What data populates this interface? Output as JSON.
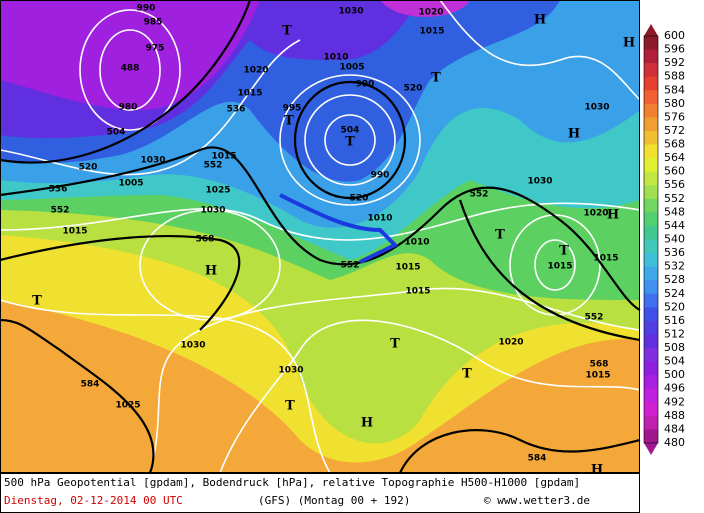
{
  "map_labels": [
    "990",
    "985",
    "975",
    "488",
    "980",
    "504",
    "520",
    "536",
    "552",
    "1015",
    "1005",
    "1030",
    "552",
    "1015",
    "1025",
    "1030",
    "568",
    "H",
    "536",
    "1015",
    "1020",
    "T",
    "T",
    "995",
    "1010",
    "1005",
    "990",
    "504",
    "T",
    "520",
    "990",
    "1010",
    "552",
    "1030",
    "1020",
    "1015",
    "520",
    "T",
    "H",
    "H",
    "1030",
    "H",
    "1030",
    "552",
    "1020",
    "H",
    "T",
    "1015",
    "1015",
    "1010",
    "1015",
    "1015",
    "552",
    "T",
    "1030",
    "1030",
    "584",
    "1025",
    "T",
    "T",
    "H",
    "T",
    "568",
    "1015",
    "584",
    "H",
    "1020",
    "T"
  ],
  "color_scale": {
    "labels": [
      600,
      596,
      592,
      588,
      584,
      580,
      576,
      572,
      568,
      564,
      560,
      556,
      552,
      548,
      544,
      540,
      536,
      532,
      528,
      524,
      520,
      516,
      512,
      508,
      504,
      500,
      496,
      492,
      488,
      484,
      480
    ],
    "colors": [
      "#8b1a2b",
      "#b0203a",
      "#d0303a",
      "#e84030",
      "#f06030",
      "#f08030",
      "#f0a030",
      "#f0c030",
      "#f0e030",
      "#e0f030",
      "#c0e840",
      "#a0e050",
      "#70d860",
      "#50d070",
      "#40c890",
      "#40c8b8",
      "#40c0d8",
      "#40a8e8",
      "#4090f0",
      "#4070f0",
      "#4050e8",
      "#5040e0",
      "#6030e0",
      "#8030e0",
      "#9020e0",
      "#a820e0",
      "#c020e0",
      "#d020d0",
      "#c020b0",
      "#a01890"
    ]
  },
  "footer": {
    "description": "500 hPa Geopotential [gpdam], Bodendruck [hPa], relative Topographie H500-H1000 [gpdam]",
    "date": "Dienstag, 02-12-2014  00 UTC",
    "model": "(GFS)  (Montag 00 + 192)",
    "source": "© www.wetter3.de"
  }
}
